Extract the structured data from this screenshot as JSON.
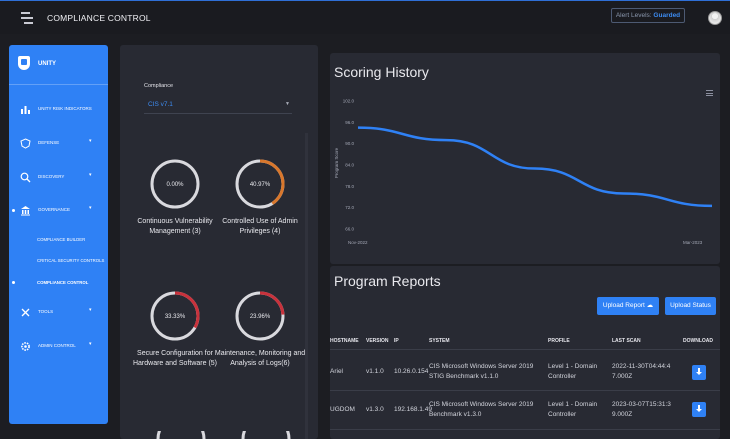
{
  "header": {
    "title": "COMPLIANCE CONTROL",
    "alert_prefix": "Alert Levels:",
    "alert_value": "Guarded"
  },
  "sidebar": {
    "brand": "UNITY",
    "items": [
      {
        "label": "UNITY RISK INDICATORS"
      },
      {
        "label": "DEFENSE"
      },
      {
        "label": "DISCOVERY"
      },
      {
        "label": "GOVERNANCE"
      },
      {
        "label": "TOOLS"
      },
      {
        "label": "ADMIN CONTROL"
      }
    ],
    "sub_items": [
      {
        "label": "COMPLIANCE BUILDER"
      },
      {
        "label": "CRITICAL SECURITY CONTROLS"
      },
      {
        "label": "COMPLIANCE CONTROL"
      }
    ]
  },
  "compliance": {
    "label": "Compliance",
    "selected": "CIS v7.1",
    "rings": [
      {
        "pct": "0.00%",
        "value": 0.0,
        "color": "#e6e6ec",
        "caption": "Continuous Vulnerability Management (3)"
      },
      {
        "pct": "40.97%",
        "value": 40.97,
        "color": "#d9772c",
        "caption": "Controlled Use of Admin Privileges (4)"
      },
      {
        "pct": "33.33%",
        "value": 33.33,
        "color": "#c8323c",
        "caption": "Secure Configuration for Hardware and Software (5)"
      },
      {
        "pct": "23.96%",
        "value": 23.96,
        "color": "#c8323c",
        "caption": "Maintenance, Monitoring and Analysis of Logs(6)"
      }
    ]
  },
  "scoring": {
    "title": "Scoring History"
  },
  "chart_data": {
    "type": "line",
    "ylabel": "Program Score",
    "y_ticks": [
      "102.0",
      "96.0",
      "90.0",
      "84.0",
      "78.0",
      "72.0",
      "66.0"
    ],
    "x_ticks": [
      "Nov-2022",
      "Mar-2023"
    ],
    "ylim": [
      66,
      102
    ],
    "series": [
      {
        "x": [
          "Nov-2022",
          "Dec-2022",
          "Jan-2023",
          "Feb-2023",
          "Mar-2023"
        ],
        "values": [
          94.5,
          91.0,
          83.0,
          76.0,
          72.5
        ],
        "color": "#2f81f5"
      }
    ]
  },
  "reports": {
    "title": "Program Reports",
    "upload_report": "Upload Report",
    "upload_status": "Upload Status",
    "columns": [
      "HOSTNAME",
      "VERSION",
      "IP",
      "SYSTEM",
      "PROFILE",
      "LAST SCAN",
      "DOWNLOAD"
    ],
    "rows": [
      {
        "hostname": "Ariel",
        "version": "v1.1.0",
        "ip": "10.26.0.154",
        "system": "CIS Microsoft Windows Server 2019 STIG Benchmark v1.1.0",
        "profile": "Level 1 - Domain Controller",
        "last_scan": "2022-11-30T04:44:47.000Z"
      },
      {
        "hostname": "UGDOM",
        "version": "v1.3.0",
        "ip": "192.168.1.49",
        "system": "CIS Microsoft Windows Server 2019 Benchmark v1.3.0",
        "profile": "Level 1 - Domain Controller",
        "last_scan": "2023-03-07T15:31:39.000Z"
      }
    ]
  }
}
